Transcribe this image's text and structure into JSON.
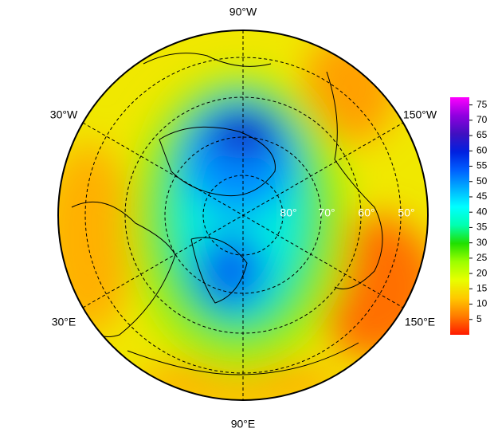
{
  "map": {
    "longitude_labels": [
      "90°W",
      "30°W",
      "150°W",
      "30°E",
      "150°E",
      "90°E"
    ],
    "latitude_labels": [
      "80°",
      "70°",
      "60°",
      "50°"
    ]
  },
  "colorbar": {
    "range": [
      0,
      77.5
    ],
    "ticks": [
      5,
      10,
      15,
      20,
      25,
      30,
      35,
      40,
      45,
      50,
      55,
      60,
      65,
      70,
      75
    ],
    "colors": [
      "#ff1a00",
      "#ff7a00",
      "#ffc800",
      "#e8ff00",
      "#9cff00",
      "#20e000",
      "#00ffb0",
      "#00ffff",
      "#00b0ff",
      "#0060ff",
      "#0020e0",
      "#4010c0",
      "#9000e0",
      "#ff00ff"
    ]
  }
}
